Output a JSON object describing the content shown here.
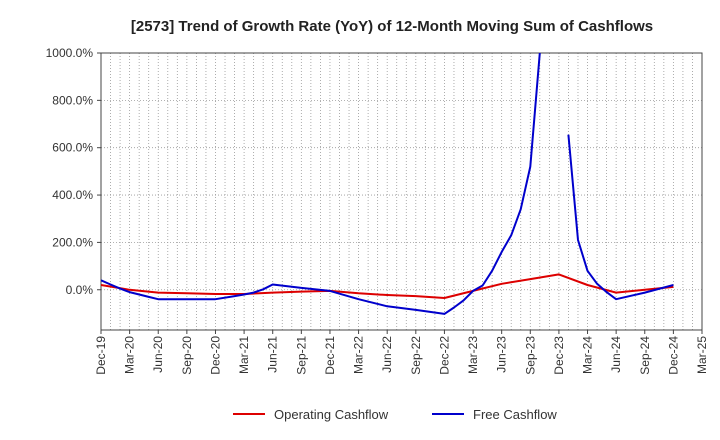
{
  "chart_data": {
    "type": "line",
    "title": "[2573]  Trend of Growth Rate (YoY) of 12-Month Moving Sum of Cashflows",
    "xlabel": "",
    "ylabel": "",
    "x_tick_labels": [
      "Dec-19",
      "Mar-20",
      "Jun-20",
      "Sep-20",
      "Dec-20",
      "Mar-21",
      "Jun-21",
      "Sep-21",
      "Dec-21",
      "Mar-22",
      "Jun-22",
      "Sep-22",
      "Dec-22",
      "Mar-23",
      "Jun-23",
      "Sep-23",
      "Dec-23",
      "Mar-24",
      "Jun-24",
      "Sep-24",
      "Dec-24",
      "Mar-25"
    ],
    "y_tick_labels": [
      "0.0%",
      "200.0%",
      "400.0%",
      "600.0%",
      "800.0%",
      "1000.0%"
    ],
    "y_ticks": [
      0,
      200,
      400,
      600,
      800,
      1000
    ],
    "ylim": [
      -170,
      1000
    ],
    "grid": true,
    "legend_position": "bottom",
    "series": [
      {
        "name": "Operating Cashflow",
        "color": "#dd0000",
        "points": [
          [
            "Dec-19",
            20
          ],
          [
            "Mar-20",
            0
          ],
          [
            "Jun-20",
            -12
          ],
          [
            "Sep-20",
            -15
          ],
          [
            "Dec-20",
            -18
          ],
          [
            "Mar-21",
            -18
          ],
          [
            "Jun-21",
            -12
          ],
          [
            "Sep-21",
            -8
          ],
          [
            "Dec-21",
            -5
          ],
          [
            "Mar-22",
            -15
          ],
          [
            "Jun-22",
            -22
          ],
          [
            "Sep-22",
            -27
          ],
          [
            "Dec-22",
            -35
          ],
          [
            "Mar-23",
            -5
          ],
          [
            "Jun-23",
            25
          ],
          [
            "Sep-23",
            45
          ],
          [
            "Dec-23",
            65
          ],
          [
            "Mar-24",
            20
          ],
          [
            "Jun-24",
            -12
          ],
          [
            "Sep-24",
            0
          ],
          [
            "Dec-24",
            12
          ]
        ]
      },
      {
        "name": "Free Cashflow",
        "color": "#0000cc",
        "segments": [
          [
            [
              "Dec-19",
              40
            ],
            [
              "Jan-20",
              22
            ],
            [
              "Feb-20",
              5
            ],
            [
              "Mar-20",
              -10
            ],
            [
              "Apr-20",
              -20
            ],
            [
              "May-20",
              -30
            ],
            [
              "Jun-20",
              -40
            ],
            [
              "Sep-20",
              -40
            ],
            [
              "Dec-20",
              -40
            ],
            [
              "Feb-21",
              -27
            ],
            [
              "Mar-21",
              -20
            ],
            [
              "Apr-21",
              -12
            ],
            [
              "May-21",
              2
            ],
            [
              "Jun-21",
              22
            ],
            [
              "Sep-21",
              8
            ],
            [
              "Dec-21",
              -5
            ],
            [
              "Mar-22",
              -40
            ],
            [
              "Jun-22",
              -70
            ],
            [
              "Sep-22",
              -85
            ],
            [
              "Dec-22",
              -102
            ],
            [
              "Jan-23",
              -75
            ],
            [
              "Feb-23",
              -45
            ],
            [
              "Mar-23",
              -5
            ],
            [
              "Apr-23",
              18
            ],
            [
              "May-23",
              80
            ],
            [
              "Jun-23",
              160
            ],
            [
              "Jul-23",
              230
            ],
            [
              "Aug-23",
              340
            ],
            [
              "Sep-23",
              520
            ],
            [
              "Oct-23",
              1000
            ]
          ],
          [
            [
              "Jan-24",
              655
            ],
            [
              "Feb-24",
              210
            ],
            [
              "Mar-24",
              80
            ],
            [
              "Apr-24",
              25
            ],
            [
              "May-24",
              -10
            ],
            [
              "Jun-24",
              -40
            ],
            [
              "Sep-24",
              -12
            ],
            [
              "Dec-24",
              20
            ]
          ]
        ]
      }
    ]
  }
}
